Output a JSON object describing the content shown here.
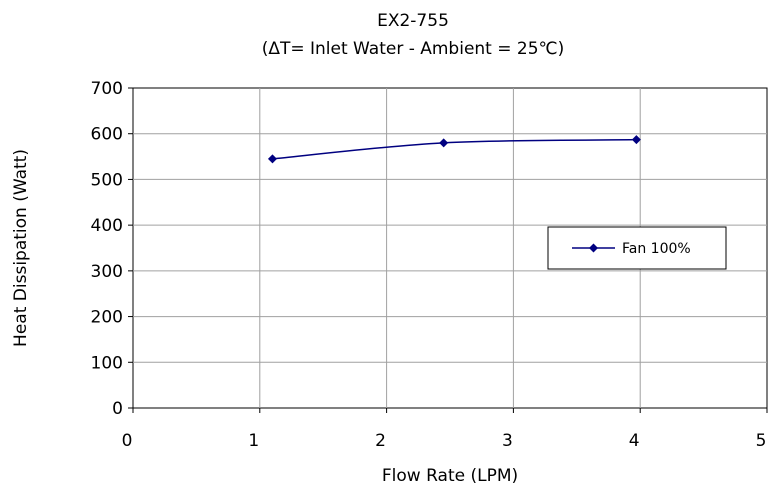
{
  "chart_data": {
    "type": "line",
    "title": "EX2-755",
    "subtitle": "(ΔT= Inlet Water - Ambient = 25℃)",
    "xlabel": "Flow Rate (LPM)",
    "ylabel": "Heat Dissipation (Watt)",
    "xlim": [
      0,
      5
    ],
    "ylim": [
      0,
      700
    ],
    "x_ticks": [
      "0",
      "1",
      "2",
      "3",
      "4",
      "5"
    ],
    "y_ticks": [
      "0",
      "100",
      "200",
      "300",
      "400",
      "500",
      "600",
      "700"
    ],
    "grid": true,
    "legend_position": "right",
    "series": [
      {
        "name": "Fan 100%",
        "color": "#000080",
        "marker": "diamond",
        "x": [
          1.1,
          2.45,
          3.97
        ],
        "y": [
          545,
          580,
          587
        ]
      }
    ]
  }
}
